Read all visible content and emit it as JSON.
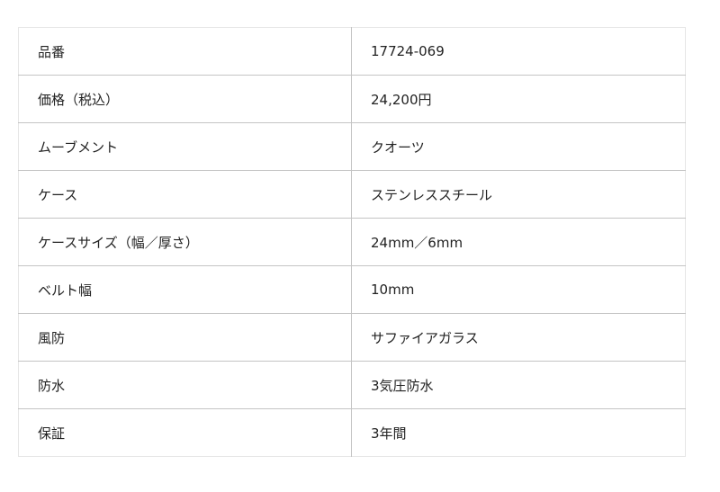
{
  "specs": [
    {
      "label": "品番",
      "value": "17724-069"
    },
    {
      "label": "価格（税込）",
      "value": "24,200円"
    },
    {
      "label": "ムーブメント",
      "value": "クオーツ"
    },
    {
      "label": "ケース",
      "value": "ステンレススチール"
    },
    {
      "label": "ケースサイズ（幅／厚さ）",
      "value": "24mm／6mm"
    },
    {
      "label": "ベルト幅",
      "value": "10mm"
    },
    {
      "label": "風防",
      "value": "サファイアガラス"
    },
    {
      "label": "防水",
      "value": "3気圧防水"
    },
    {
      "label": "保証",
      "value": "3年間"
    }
  ]
}
